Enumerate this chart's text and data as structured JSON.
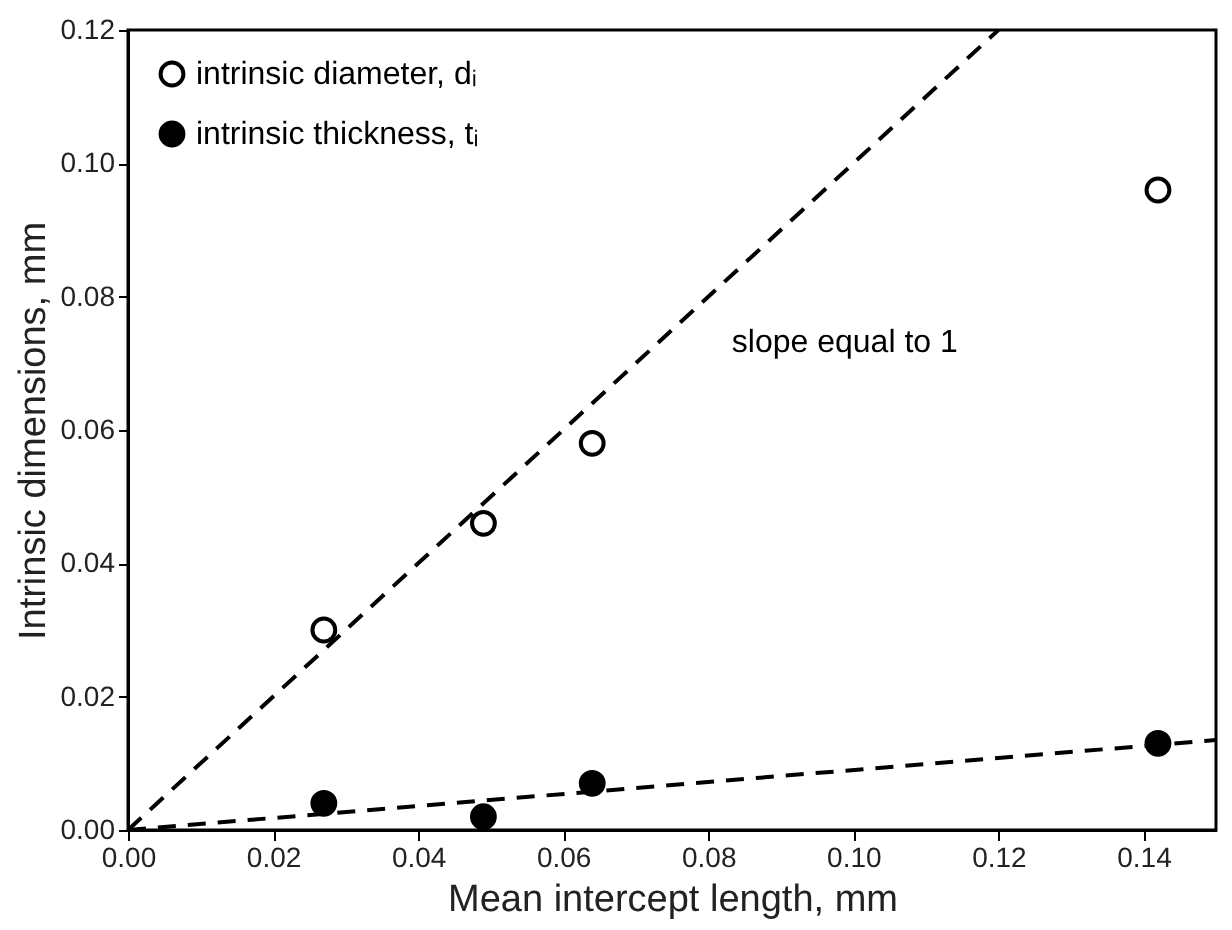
{
  "chart_data": {
    "type": "scatter",
    "xlabel": "Mean intercept length, mm",
    "ylabel": "Intrinsic dimensions, mm",
    "xlim": [
      0,
      0.15
    ],
    "ylim": [
      0,
      0.12
    ],
    "xticks": [
      {
        "value": 0,
        "label": "0.00"
      },
      {
        "value": 0.02,
        "label": "0.02"
      },
      {
        "value": 0.04,
        "label": "0.04"
      },
      {
        "value": 0.06,
        "label": "0.06"
      },
      {
        "value": 0.08,
        "label": "0.08"
      },
      {
        "value": 0.1,
        "label": "0.10"
      },
      {
        "value": 0.12,
        "label": "0.12"
      },
      {
        "value": 0.14,
        "label": "0.14"
      }
    ],
    "yticks": [
      {
        "value": 0,
        "label": "0.00"
      },
      {
        "value": 0.02,
        "label": "0.02"
      },
      {
        "value": 0.04,
        "label": "0.04"
      },
      {
        "value": 0.06,
        "label": "0.06"
      },
      {
        "value": 0.08,
        "label": "0.08"
      },
      {
        "value": 0.1,
        "label": "0.10"
      },
      {
        "value": 0.12,
        "label": "0.12"
      }
    ],
    "x": [
      0.027,
      0.049,
      0.064,
      0.142
    ],
    "series": [
      {
        "name": "intrinsic diameter, dᵢ",
        "color": "#000000",
        "marker": "circle",
        "values": [
          0.03,
          0.046,
          0.058,
          0.096
        ]
      },
      {
        "name": "intrinsic thickness, tᵢ",
        "color": "#000000",
        "marker": "circle",
        "values": [
          0.004,
          0.002,
          0.007,
          0.013
        ]
      },
      {
        "type": "line",
        "color": "#000000",
        "line_style": "dashed",
        "x": [
          0,
          0.12
        ],
        "values": [
          0,
          0.12
        ]
      },
      {
        "type": "line",
        "color": "#000000",
        "line_style": "dashed",
        "x": [
          0,
          0.15
        ],
        "values": [
          0,
          0.0135
        ]
      }
    ],
    "annotations": [
      "slope equal to 1"
    ],
    "legend": "top left",
    "grid": false
  }
}
